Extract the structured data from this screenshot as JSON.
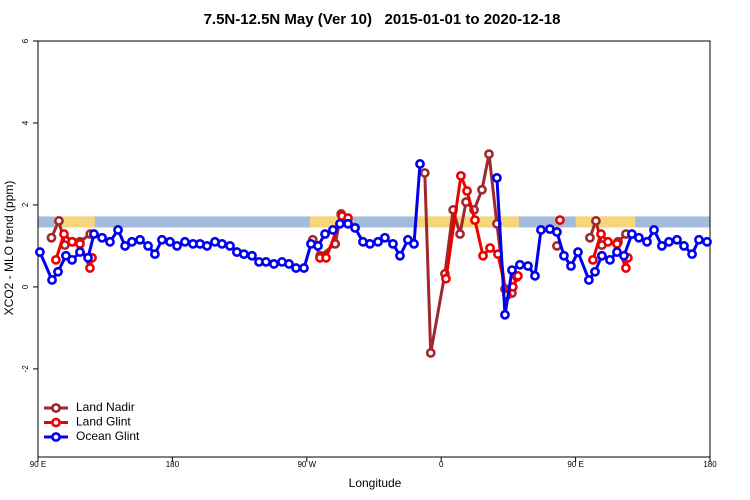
{
  "chart_data": {
    "type": "line",
    "title": "7.5N-12.5N May (Ver 10)   2015-01-01 to 2020-12-18",
    "x_label": "Longitude",
    "y_label": "XCO2 - MLO trend (ppm)",
    "xlim": [
      90,
      540
    ],
    "ylim": [
      -4.15,
      6
    ],
    "xticks": [
      {
        "value": 90,
        "label": "90 E"
      },
      180,
      {
        "value": 270,
        "label": "90 W"
      },
      {
        "value": 360,
        "label": "0"
      },
      {
        "value": 450,
        "label": "90 E"
      },
      {
        "value": 540,
        "label": "180"
      }
    ],
    "yticks": [
      -2,
      0,
      2,
      4,
      6
    ],
    "legend": "bottom-left",
    "land_mask": {
      "ylim": [
        1.45,
        1.72
      ],
      "ocean_color": "#a3bbdc",
      "land_color": "#f7d57a",
      "land": [
        [
          101,
          128
        ],
        [
          272,
          296
        ],
        [
          344,
          412
        ],
        [
          450,
          490
        ]
      ]
    },
    "series": [
      {
        "name": "Land Nadir",
        "color": "#a0282d",
        "x": [
          99,
          104,
          108,
          113,
          118,
          125,
          200,
          274,
          279,
          289,
          293,
          320,
          349,
          353,
          362.5,
          368,
          372.6,
          376.6,
          382,
          387.3,
          392,
          397.3,
          402.7,
          407.4,
          410.7,
          424,
          437.5,
          448,
          459.6,
          463.6,
          467.6,
          478.4,
          483.7
        ],
        "values": [
          1.2,
          1.61,
          1.02,
          1.1,
          1.1,
          1.29,
          null,
          1.15,
          0.76,
          1.05,
          1.78,
          null,
          2.78,
          -1.61,
          0.32,
          1.88,
          1.29,
          2.07,
          1.88,
          2.37,
          3.24,
          1.54,
          -0.05,
          -0.15,
          0.24,
          null,
          1.0,
          null,
          1.2,
          1.61,
          1.02,
          1.1,
          1.29
        ]
      },
      {
        "name": "Land Glint",
        "color": "#ee0000",
        "x": [
          102,
          107.4,
          112.8,
          118.1,
          124.8,
          126.2,
          200,
          278.8,
          282.9,
          293.6,
          297.6,
          330,
          363.2,
          373.2,
          377.3,
          382.6,
          388,
          392.7,
          398,
          404,
          408,
          411.4,
          425,
          439.5,
          450,
          461.6,
          467,
          471.7,
          477.7,
          483.7,
          485
        ],
        "values": [
          0.66,
          1.29,
          1.1,
          1.05,
          0.46,
          0.71,
          null,
          0.71,
          0.71,
          1.73,
          1.68,
          null,
          0.2,
          2.71,
          2.34,
          1.63,
          0.76,
          0.95,
          0.8,
          -0.2,
          0.0,
          0.27,
          null,
          1.63,
          null,
          0.66,
          1.29,
          1.1,
          1.05,
          0.46,
          0.71
        ]
      },
      {
        "name": "Ocean Glint",
        "color": "#0000ee",
        "x": [
          91.3,
          99.4,
          103.4,
          108.7,
          112.8,
          118.1,
          123.5,
          127.5,
          132.9,
          138.2,
          143.6,
          148.3,
          152.9,
          158.3,
          163.7,
          168.3,
          173,
          178.4,
          183.1,
          188.4,
          193.8,
          198.5,
          203.2,
          208.5,
          213.2,
          218.6,
          223.2,
          227.9,
          233.3,
          238,
          242.7,
          248,
          253.4,
          258.1,
          262.8,
          268.1,
          272.8,
          277.5,
          282.2,
          287.5,
          292.2,
          297.6,
          302.3,
          307.6,
          312.3,
          317.7,
          322.3,
          327.7,
          332.4,
          337.7,
          341.8,
          345.8,
          371,
          397.3,
          402.7,
          407.4,
          412.7,
          418.1,
          422.8,
          426.8,
          432.8,
          437.5,
          442.2,
          446.9,
          451.6,
          458.9,
          463,
          467.6,
          473,
          477.7,
          482.4,
          487.7,
          492.4,
          497.8,
          502.5,
          507.8,
          512.5,
          517.9,
          522.6,
          528,
          532.6,
          538
        ],
        "values": [
          0.85,
          0.17,
          0.37,
          0.76,
          0.66,
          0.85,
          0.71,
          1.29,
          1.2,
          1.1,
          1.39,
          1.0,
          1.1,
          1.15,
          1.0,
          0.8,
          1.15,
          1.1,
          1.0,
          1.1,
          1.05,
          1.05,
          1.0,
          1.1,
          1.05,
          1.0,
          0.85,
          0.8,
          0.76,
          0.61,
          0.61,
          0.56,
          0.61,
          0.56,
          0.46,
          0.46,
          1.05,
          1.0,
          1.29,
          1.39,
          1.54,
          1.54,
          1.44,
          1.1,
          1.05,
          1.1,
          1.2,
          1.05,
          0.76,
          1.15,
          1.05,
          3.0,
          null,
          2.66,
          -0.68,
          0.41,
          0.54,
          0.51,
          0.27,
          1.39,
          1.41,
          1.34,
          0.76,
          0.51,
          0.85,
          0.17,
          0.37,
          0.76,
          0.66,
          0.85,
          0.76,
          1.29,
          1.2,
          1.1,
          1.39,
          1.0,
          1.1,
          1.15,
          1.0,
          0.8,
          1.15,
          1.1
        ]
      }
    ]
  }
}
